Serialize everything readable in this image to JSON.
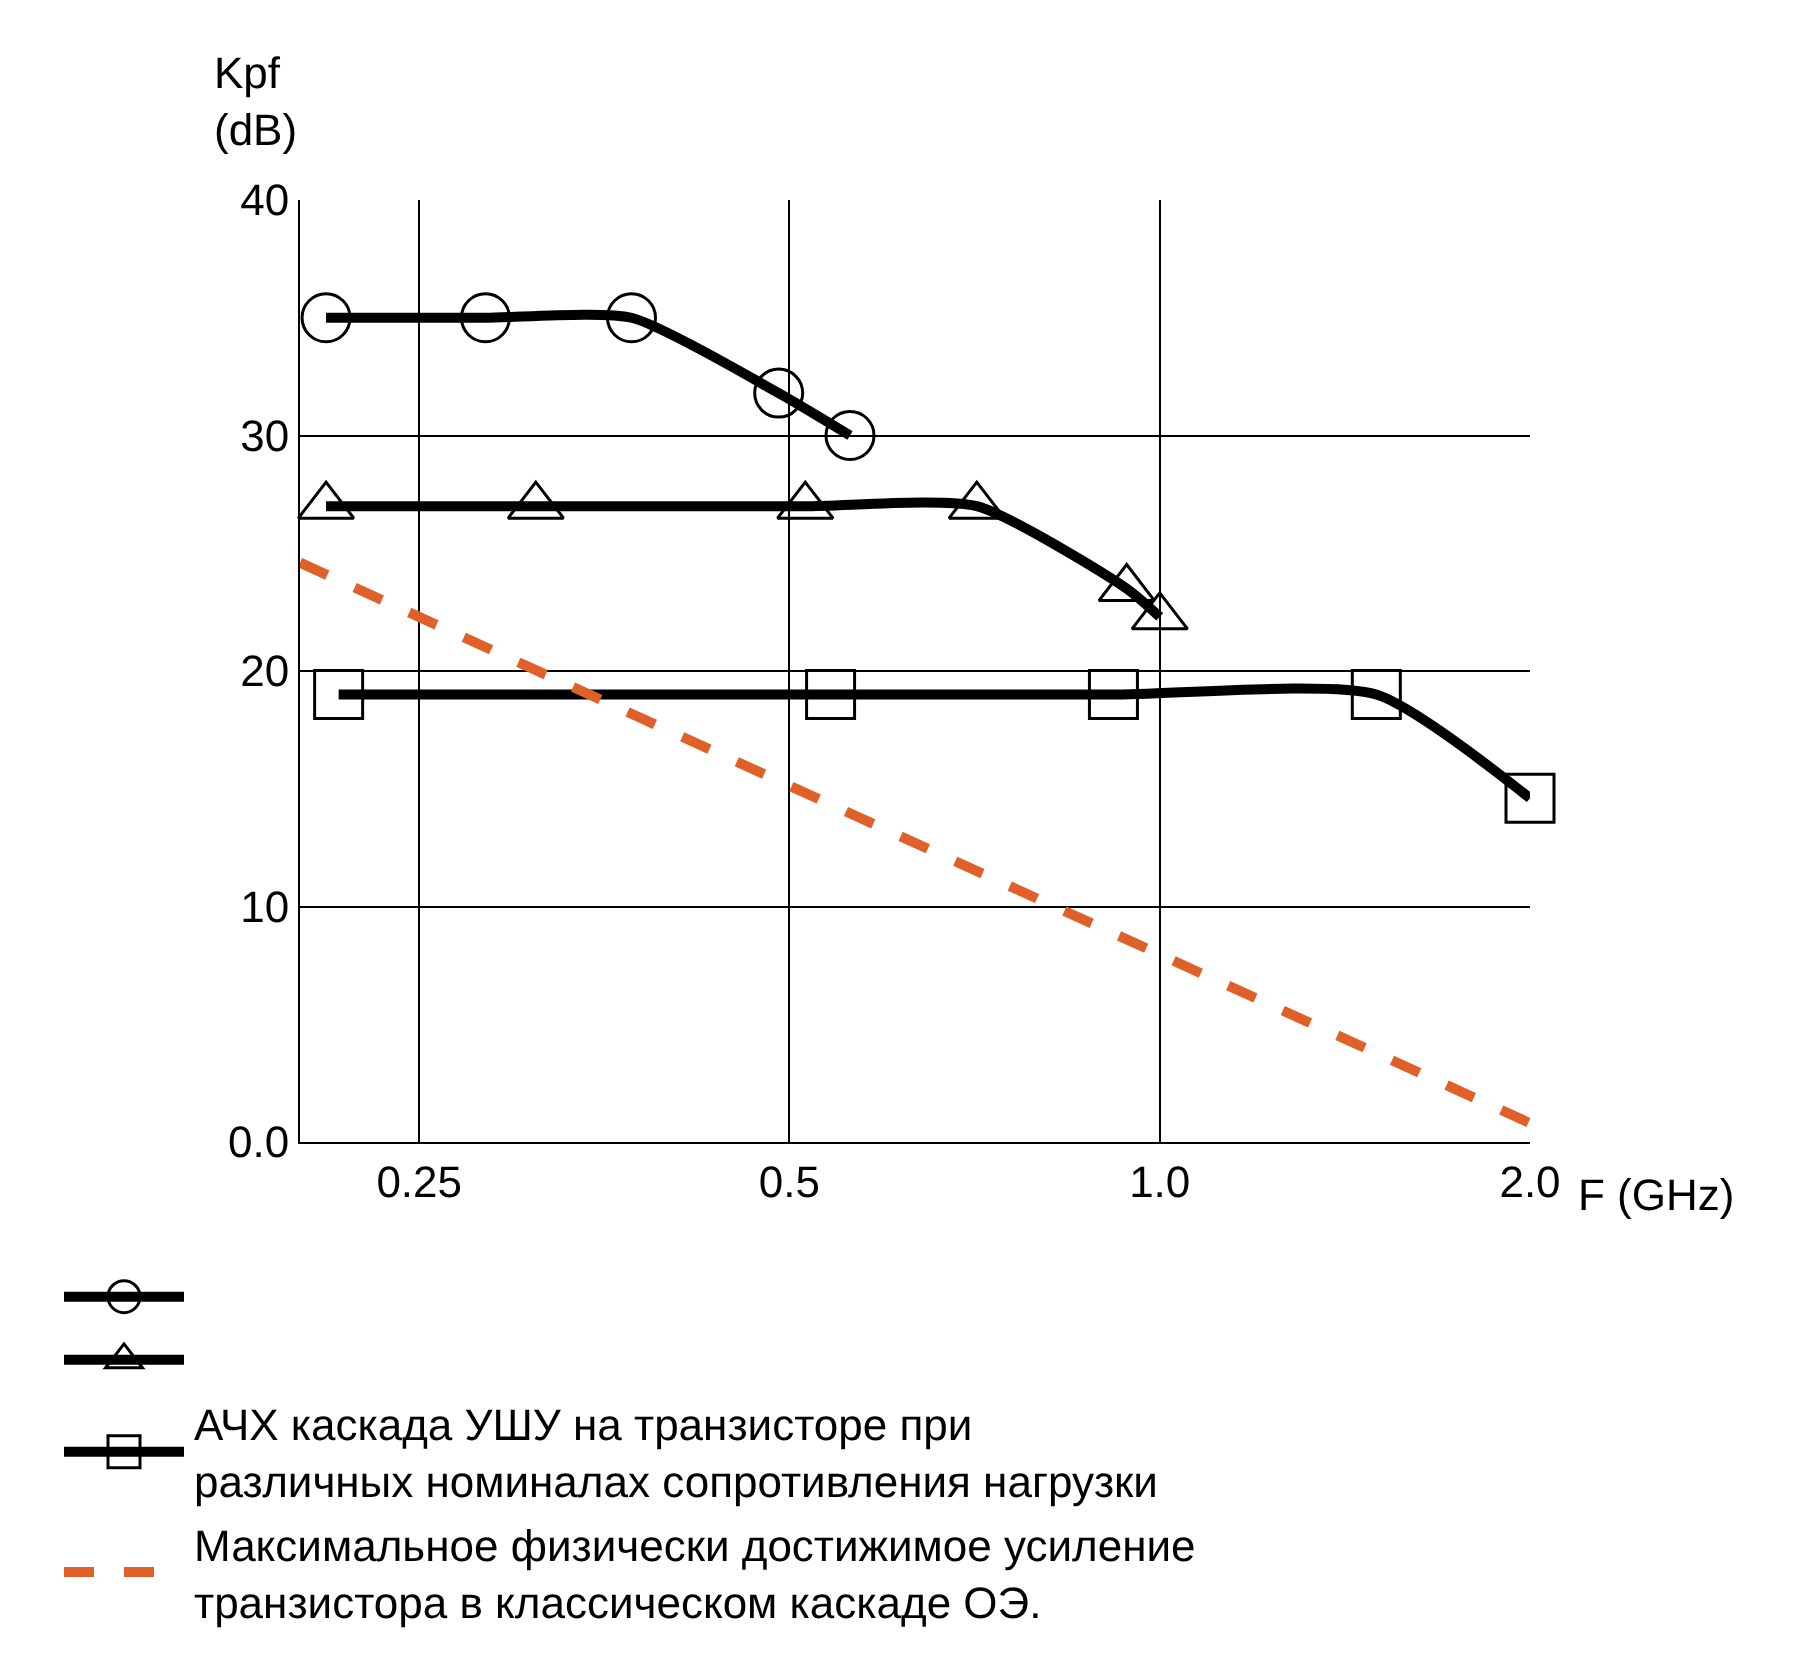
{
  "chart_data": {
    "type": "line",
    "xlabel": "F (GHz)",
    "ylabel": "Kpf\n(dB)",
    "log": "x",
    "xlim": [
      0.2,
      2.0
    ],
    "xticks": [
      0.25,
      0.5,
      {
        "value": 1.0,
        "label": "1.0"
      },
      {
        "value": 2.0,
        "label": "2.0"
      }
    ],
    "ylim": [
      0,
      40
    ],
    "yticks": [
      {
        "value": 0,
        "label": "0.0"
      },
      10,
      20,
      30,
      40
    ],
    "grid": true,
    "legend": "bottom",
    "series": [
      {
        "color": "#000000",
        "marker": "circle",
        "line_style": "solid",
        "x": [
          0.21,
          0.283,
          0.372,
          0.49,
          0.56
        ],
        "values": [
          35,
          35,
          35,
          31.8,
          30
        ]
      },
      {
        "color": "#000000",
        "marker": "triangle",
        "line_style": "solid",
        "x": [
          0.21,
          0.311,
          0.515,
          0.71,
          0.94,
          1.0
        ],
        "values": [
          27,
          27,
          27,
          27,
          23.5,
          22.3
        ]
      },
      {
        "name": "АЧХ каскада УШУ на транзисторе при\nразличных номиналах сопротивления нагрузки",
        "color": "#000000",
        "marker": "square",
        "line_style": "solid",
        "x": [
          0.215,
          0.54,
          0.917,
          1.5,
          2.0
        ],
        "values": [
          19,
          19,
          19,
          19,
          14.6
        ]
      },
      {
        "name": "Максимальное физически достижимое усиление\nтранзистора в классическом каскаде ОЭ.",
        "color": "#e0602a",
        "marker": "none",
        "line_style": "dashed",
        "x": [
          0.2,
          2.0
        ],
        "values": [
          24.6,
          0.8
        ]
      }
    ]
  }
}
